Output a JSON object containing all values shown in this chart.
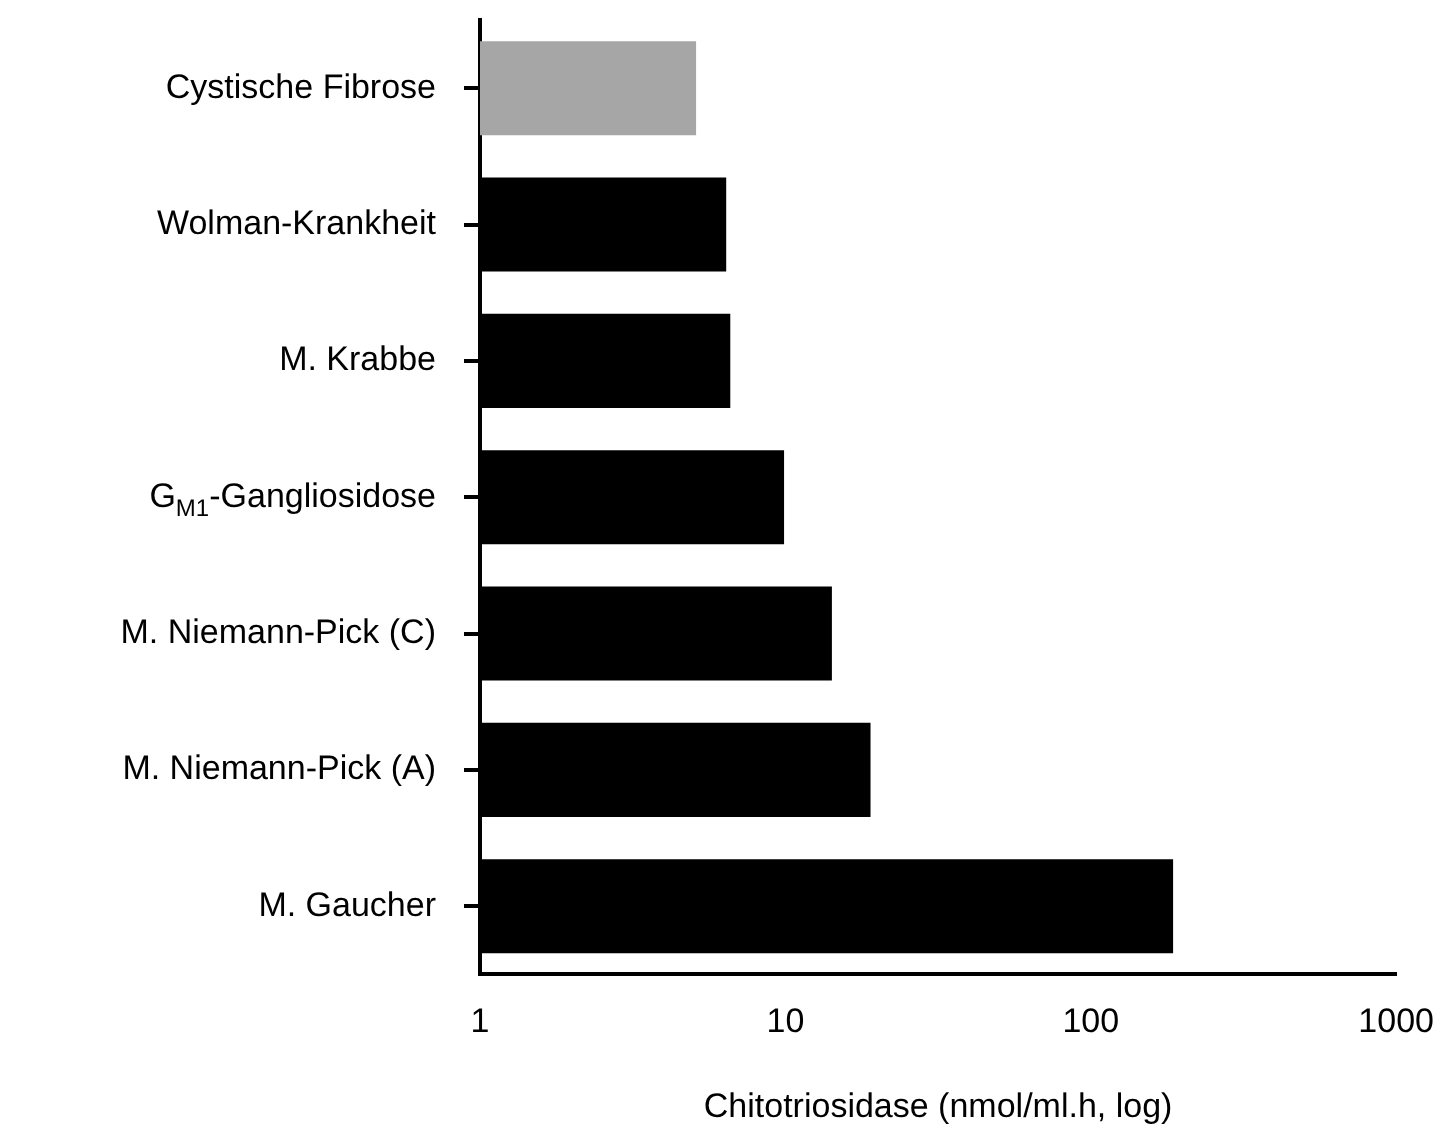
{
  "chart_data": {
    "type": "bar",
    "orientation": "horizontal",
    "log": "x",
    "categories": [
      "Cystische Fibrose",
      "Wolman-Krankheit",
      "M. Krabbe",
      "G$_{M1}$-Gangliosidose",
      "M. Niemann-Pick (C)",
      "M. Niemann-Pick (A)",
      "M. Gaucher"
    ],
    "values": [
      5.1,
      6.4,
      6.6,
      9.9,
      14.2,
      19,
      186
    ],
    "colors": [
      "#a6a6a6",
      "#000000",
      "#000000",
      "#000000",
      "#000000",
      "#000000",
      "#000000"
    ],
    "xlabel": "Chitotriosidase (nmol/ml.h, log)",
    "xlim": [
      1,
      1000
    ],
    "xticks": [
      1,
      10,
      100,
      1000
    ],
    "grid": false,
    "legend": false
  }
}
